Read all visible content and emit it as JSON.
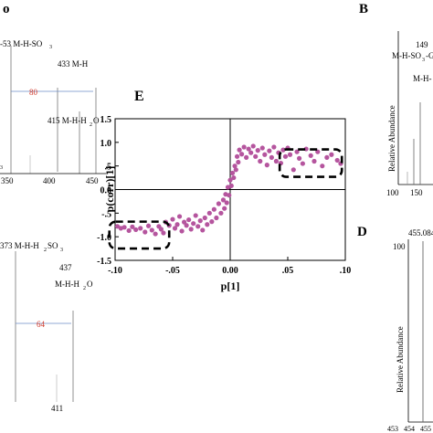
{
  "panels": {
    "top_left": {
      "label_letter": "o",
      "peak_labels": [
        "-53 M-H-SO",
        "433 M-H",
        "415 M-H-H",
        "O"
      ],
      "sub3": "3",
      "sub2": "2",
      "delta": "80",
      "small_text": "3",
      "ticks": [
        "350",
        "400",
        "450"
      ]
    },
    "bottom_left": {
      "peak_labels": [
        "373 M-H-H",
        "SO",
        "437",
        "M-H-H",
        "O",
        "411"
      ],
      "sub2a": "2",
      "sub3": "3",
      "sub2b": "2",
      "delta": "64"
    },
    "panel_B": {
      "letter": "B",
      "peak_value": "149",
      "peak_label_1": "M-H-SO",
      "peak_label_sub": "3",
      "peak_label_2": "-Glu",
      "peak_label_3": "M-H-",
      "ylabel": "Relative Abundance",
      "ticks": [
        "100",
        "150"
      ]
    },
    "panel_D": {
      "letter": "D",
      "y_top": "100",
      "peak_value": "455.084",
      "ylabel": "Relative Abundance",
      "ticks": [
        "453",
        "454",
        "455"
      ]
    }
  },
  "chart_data": {
    "type": "scatter",
    "panel_letter": "E",
    "title": "",
    "xlabel": "p[1]",
    "ylabel": "p(corr)[1]",
    "xlim": [
      -0.1,
      0.1
    ],
    "ylim": [
      -1.5,
      1.5
    ],
    "x_tick_labels": [
      "-.10",
      "-.05",
      "0.00",
      ".05",
      ".10"
    ],
    "y_tick_labels": [
      "1.5",
      "1.0",
      ".5",
      "0.0",
      "-.5",
      "-1.0",
      "-1.5"
    ],
    "grid": false,
    "point_color": "#b5559e",
    "highlight_boxes": [
      {
        "x": [
          -0.105,
          -0.053
        ],
        "y": [
          -1.25,
          -0.68
        ]
      },
      {
        "x": [
          0.043,
          0.097
        ],
        "y": [
          0.27,
          0.85
        ]
      }
    ],
    "series": [
      {
        "values": [
          [
            -0.098,
            -0.78
          ],
          [
            -0.095,
            -0.82
          ],
          [
            -0.092,
            -0.8
          ],
          [
            -0.088,
            -0.87
          ],
          [
            -0.085,
            -0.79
          ],
          [
            -0.082,
            -0.85
          ],
          [
            -0.078,
            -0.82
          ],
          [
            -0.074,
            -0.9
          ],
          [
            -0.071,
            -0.77
          ],
          [
            -0.068,
            -0.86
          ],
          [
            -0.065,
            -0.94
          ],
          [
            -0.062,
            -0.78
          ],
          [
            -0.06,
            -0.84
          ],
          [
            -0.058,
            -0.92
          ],
          [
            -0.056,
            -0.69
          ],
          [
            -0.053,
            -0.76
          ],
          [
            -0.05,
            -0.63
          ],
          [
            -0.048,
            -0.82
          ],
          [
            -0.046,
            -0.74
          ],
          [
            -0.044,
            -0.57
          ],
          [
            -0.042,
            -0.88
          ],
          [
            -0.04,
            -0.69
          ],
          [
            -0.038,
            -0.76
          ],
          [
            -0.036,
            -0.64
          ],
          [
            -0.034,
            -0.84
          ],
          [
            -0.032,
            -0.72
          ],
          [
            -0.03,
            -0.55
          ],
          [
            -0.028,
            -0.78
          ],
          [
            -0.026,
            -0.66
          ],
          [
            -0.024,
            -0.86
          ],
          [
            -0.022,
            -0.6
          ],
          [
            -0.02,
            -0.74
          ],
          [
            -0.018,
            -0.5
          ],
          [
            -0.016,
            -0.68
          ],
          [
            -0.014,
            -0.42
          ],
          [
            -0.012,
            -0.6
          ],
          [
            -0.01,
            -0.3
          ],
          [
            -0.008,
            -0.5
          ],
          [
            -0.006,
            -0.22
          ],
          [
            -0.005,
            -0.4
          ],
          [
            -0.004,
            -0.1
          ],
          [
            -0.003,
            -0.28
          ],
          [
            -0.002,
            0.05
          ],
          [
            -0.001,
            -0.12
          ],
          [
            0.0,
            0.2
          ],
          [
            0.001,
            0.08
          ],
          [
            0.002,
            0.35
          ],
          [
            0.003,
            0.25
          ],
          [
            0.004,
            0.5
          ],
          [
            0.005,
            0.42
          ],
          [
            0.006,
            0.7
          ],
          [
            0.007,
            0.58
          ],
          [
            0.008,
            0.84
          ],
          [
            0.01,
            0.75
          ],
          [
            0.012,
            0.9
          ],
          [
            0.014,
            0.68
          ],
          [
            0.016,
            0.86
          ],
          [
            0.018,
            0.78
          ],
          [
            0.02,
            0.92
          ],
          [
            0.022,
            0.7
          ],
          [
            0.024,
            0.83
          ],
          [
            0.026,
            0.6
          ],
          [
            0.028,
            0.88
          ],
          [
            0.03,
            0.74
          ],
          [
            0.032,
            0.52
          ],
          [
            0.034,
            0.82
          ],
          [
            0.036,
            0.68
          ],
          [
            0.038,
            0.9
          ],
          [
            0.04,
            0.6
          ],
          [
            0.042,
            0.78
          ],
          [
            0.044,
            0.56
          ],
          [
            0.046,
            0.84
          ],
          [
            0.048,
            0.7
          ],
          [
            0.05,
            0.88
          ],
          [
            0.052,
            0.74
          ],
          [
            0.055,
            0.42
          ],
          [
            0.058,
            0.8
          ],
          [
            0.06,
            0.66
          ],
          [
            0.063,
            0.55
          ],
          [
            0.066,
            0.86
          ],
          [
            0.07,
            0.72
          ],
          [
            0.073,
            0.6
          ],
          [
            0.076,
            0.8
          ],
          [
            0.08,
            0.5
          ],
          [
            0.084,
            0.68
          ],
          [
            0.088,
            0.74
          ],
          [
            0.093,
            0.62
          ],
          [
            0.096,
            0.55
          ]
        ]
      }
    ]
  }
}
